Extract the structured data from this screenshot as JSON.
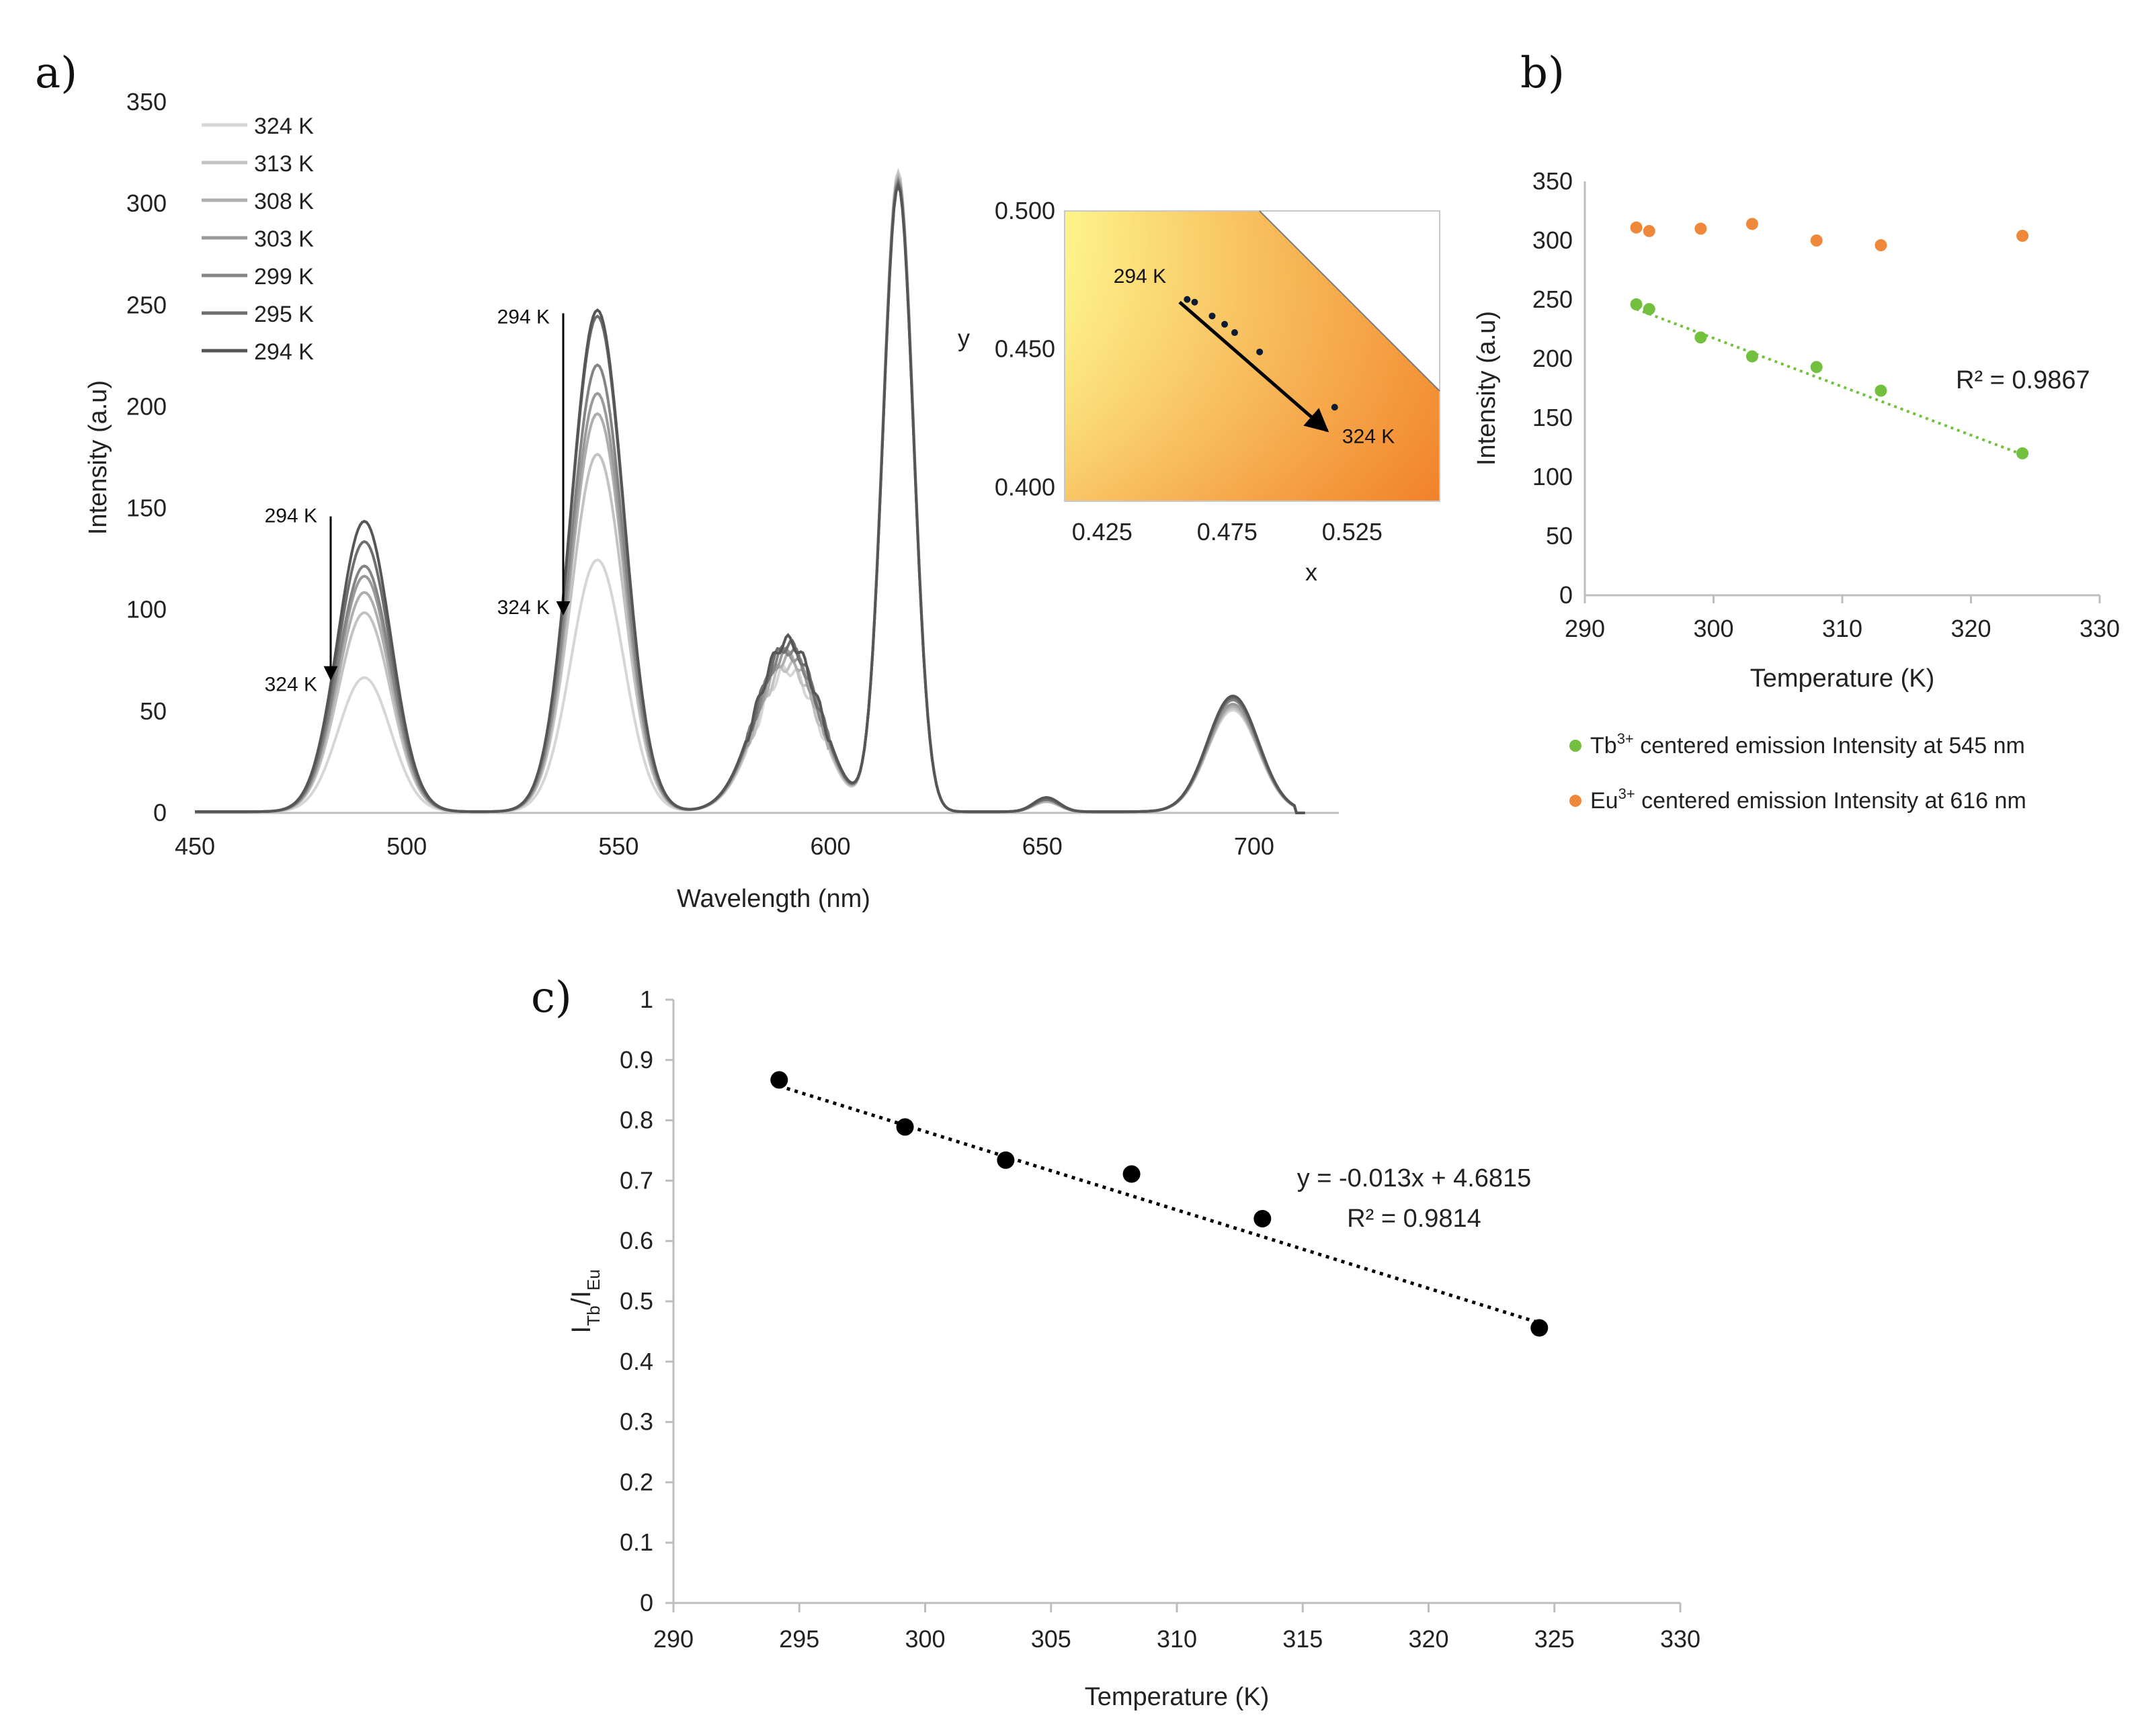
{
  "chart_data": [
    {
      "panel_label": "a)",
      "type": "line",
      "xlabel": "Wavelength (nm)",
      "ylabel": "Intensity (a.u)",
      "xlim": [
        450,
        720
      ],
      "ylim": [
        0,
        350
      ],
      "xticks": [
        450,
        500,
        550,
        600,
        650,
        700
      ],
      "yticks": [
        0,
        50,
        100,
        150,
        200,
        250,
        300,
        350
      ],
      "series": [
        {
          "name": "324 K",
          "color": "#d6d6d6",
          "peaks": [
            66,
            124,
            70,
            315,
            5,
            50
          ]
        },
        {
          "name": "313 K",
          "color": "#c2c2c2",
          "peaks": [
            98,
            176,
            72,
            314,
            5,
            51
          ]
        },
        {
          "name": "308 K",
          "color": "#aeaeae",
          "peaks": [
            108,
            196,
            76,
            312,
            5,
            52
          ]
        },
        {
          "name": "303 K",
          "color": "#9a9a9a",
          "peaks": [
            116,
            206,
            78,
            311,
            6,
            53
          ]
        },
        {
          "name": "299 K",
          "color": "#848484",
          "peaks": [
            121,
            220,
            80,
            310,
            6,
            55
          ]
        },
        {
          "name": "295 K",
          "color": "#6e6e6e",
          "peaks": [
            133,
            244,
            82,
            309,
            6,
            56
          ]
        },
        {
          "name": "294 K",
          "color": "#565656",
          "peaks": [
            143,
            247,
            84,
            308,
            7,
            57
          ]
        }
      ],
      "peak_positions_nm": [
        490,
        545,
        590,
        616,
        651,
        695
      ],
      "annotations": [
        {
          "text_top": "294 K",
          "text_bottom": "324 K",
          "x_nm": 490
        },
        {
          "text_top": "294 K",
          "text_bottom": "324 K",
          "x_nm": 545
        }
      ],
      "inset": {
        "type": "scatter",
        "xlabel": "x",
        "ylabel": "y",
        "xlim": [
          0.41,
          0.56
        ],
        "ylim": [
          0.395,
          0.5
        ],
        "xticks": [
          "0.425",
          "0.475",
          "0.525"
        ],
        "yticks": [
          "0.400",
          "0.450",
          "0.500"
        ],
        "points": [
          [
            0.459,
            0.468
          ],
          [
            0.462,
            0.467
          ],
          [
            0.469,
            0.462
          ],
          [
            0.474,
            0.459
          ],
          [
            0.478,
            0.456
          ],
          [
            0.488,
            0.449
          ],
          [
            0.518,
            0.429
          ]
        ],
        "arrow_start_label": "294 K",
        "arrow_end_label": "324 K"
      }
    },
    {
      "panel_label": "b)",
      "type": "scatter",
      "xlabel": "Temperature (K)",
      "ylabel": "Intensity (a.u)",
      "xlim": [
        290,
        330
      ],
      "ylim": [
        0,
        350
      ],
      "xticks": [
        290,
        300,
        310,
        320,
        330
      ],
      "yticks": [
        0,
        50,
        100,
        150,
        200,
        250,
        300,
        350
      ],
      "series": [
        {
          "name": "Eu³⁺ centered emission Intensity at 616 nm",
          "legend_main": "Eu",
          "legend_sup": "3+",
          "legend_rest": " centered emission Intensity at 616 nm",
          "color": "#f0883c",
          "x": [
            294,
            295,
            299,
            303,
            308,
            313,
            324
          ],
          "y": [
            311,
            308,
            310,
            314,
            300,
            296,
            304
          ]
        },
        {
          "name": "Tb³⁺ centered emission Intensity at 545 nm",
          "legend_main": "Tb",
          "legend_sup": "3+",
          "legend_rest": " centered emission Intensity at 545 nm",
          "color": "#72c03e",
          "x": [
            294,
            295,
            299,
            303,
            308,
            313,
            324
          ],
          "y": [
            246,
            242,
            218,
            202,
            193,
            173,
            120
          ]
        }
      ],
      "trendline": {
        "series": 1,
        "x": [
          294,
          324
        ],
        "y": [
          242,
          119
        ],
        "style": "dotted"
      },
      "r2_label": "R² = 0.9867"
    },
    {
      "panel_label": "c)",
      "type": "scatter",
      "xlabel": "Temperature (K)",
      "ylabel": "ITb/IEu",
      "ylabel_parts": {
        "I1": "I",
        "sub1": "Tb",
        "slash": "/",
        "I2": "I",
        "sub2": "Eu"
      },
      "xlim": [
        290,
        330
      ],
      "ylim": [
        0,
        1
      ],
      "xticks": [
        290,
        295,
        300,
        305,
        310,
        315,
        320,
        325,
        330
      ],
      "yticks": [
        "0",
        "0.1",
        "0.2",
        "0.3",
        "0.4",
        "0.5",
        "0.6",
        "0.7",
        "0.8",
        "0.9",
        "1"
      ],
      "series": [
        {
          "name": "ITb/IEu",
          "color": "#000000",
          "x": [
            294.2,
            299.2,
            303.2,
            308.2,
            313.4,
            324.4
          ],
          "y": [
            0.867,
            0.789,
            0.734,
            0.711,
            0.637,
            0.456
          ]
        }
      ],
      "trendline": {
        "x": [
          294.2,
          324.4
        ],
        "y": [
          0.8569,
          0.4643
        ],
        "style": "dotted"
      },
      "equation_label": "y = -0.013x + 4.6815",
      "r2_label": "R² = 0.9814"
    }
  ]
}
